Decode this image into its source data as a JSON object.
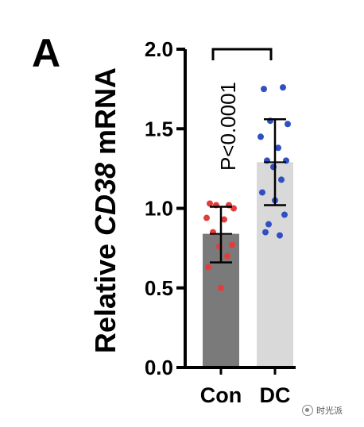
{
  "panel_label": "A",
  "watermark": "时光派",
  "chart_data": {
    "type": "bar",
    "categories": [
      "Con",
      "DC"
    ],
    "ylabel_prefix": "Relative ",
    "ylabel_gene": "CD38",
    "ylabel_suffix": " mRNA",
    "ylim": [
      0,
      2.0
    ],
    "yticks": [
      "0.0",
      "0.5",
      "1.0",
      "1.5",
      "2.0"
    ],
    "yticks_values": [
      0,
      0.5,
      1.0,
      1.5,
      2.0
    ],
    "values": [
      0.84,
      1.29
    ],
    "error_low": [
      0.66,
      1.02
    ],
    "error_high": [
      1.01,
      1.56
    ],
    "bar_colors": [
      "#7a7a7a",
      "#d9d9d9"
    ],
    "point_colors": [
      "#e23c3c",
      "#2f4fc2"
    ],
    "points": [
      [
        1.03,
        1.02,
        1.02,
        1.0,
        0.94,
        0.93,
        0.85,
        0.77,
        0.76,
        0.7,
        0.63,
        0.5
      ],
      [
        1.75,
        1.76,
        1.55,
        1.53,
        1.45,
        1.38,
        1.3,
        1.3,
        1.26,
        1.18,
        1.1,
        1.05,
        0.96,
        0.9,
        0.83,
        0.85
      ]
    ],
    "annotation": "P<0.0001",
    "grid": false
  }
}
